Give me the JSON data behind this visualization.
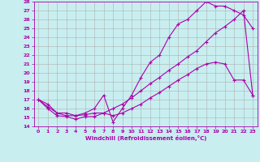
{
  "xlabel": "Windchill (Refroidissement éolien,°C)",
  "bg_color": "#c8eef0",
  "grid_color": "#b0b0b0",
  "line_color": "#aa00aa",
  "xlim": [
    -0.5,
    23.5
  ],
  "ylim": [
    14,
    28
  ],
  "xticks": [
    0,
    1,
    2,
    3,
    4,
    5,
    6,
    7,
    8,
    9,
    10,
    11,
    12,
    13,
    14,
    15,
    16,
    17,
    18,
    19,
    20,
    21,
    22,
    23
  ],
  "yticks": [
    14,
    15,
    16,
    17,
    18,
    19,
    20,
    21,
    22,
    23,
    24,
    25,
    26,
    27,
    28
  ],
  "line1_x": [
    0,
    1,
    2,
    3,
    4,
    5,
    6,
    7,
    8,
    9,
    10,
    11,
    12,
    13,
    14,
    15,
    16,
    17,
    18,
    19,
    20,
    21,
    22,
    23
  ],
  "line1_y": [
    17.0,
    16.0,
    15.2,
    15.1,
    14.8,
    15.1,
    15.1,
    15.5,
    15.2,
    15.5,
    16.0,
    16.5,
    17.2,
    17.8,
    18.5,
    19.2,
    19.8,
    20.5,
    21.0,
    21.2,
    21.0,
    19.2,
    19.2,
    17.5
  ],
  "line2_x": [
    0,
    1,
    2,
    3,
    4,
    5,
    6,
    7,
    8,
    9,
    10,
    11,
    12,
    13,
    14,
    15,
    16,
    17,
    18,
    19,
    20,
    21,
    22,
    23
  ],
  "line2_y": [
    17.0,
    16.2,
    15.5,
    15.2,
    15.2,
    15.3,
    15.5,
    15.5,
    16.0,
    16.5,
    17.2,
    18.0,
    18.8,
    19.5,
    20.3,
    21.0,
    21.8,
    22.5,
    23.5,
    24.5,
    25.2,
    26.0,
    27.0,
    17.5
  ],
  "line3_x": [
    0,
    1,
    2,
    3,
    4,
    5,
    6,
    7,
    8,
    9,
    10,
    11,
    12,
    13,
    14,
    15,
    16,
    17,
    18,
    19,
    20,
    21,
    22,
    23
  ],
  "line3_y": [
    17.0,
    16.5,
    15.5,
    15.5,
    15.2,
    15.5,
    16.0,
    17.5,
    14.5,
    16.0,
    17.5,
    19.5,
    21.2,
    22.0,
    24.0,
    25.5,
    26.0,
    27.0,
    28.0,
    27.5,
    27.5,
    27.0,
    26.5,
    25.0
  ]
}
